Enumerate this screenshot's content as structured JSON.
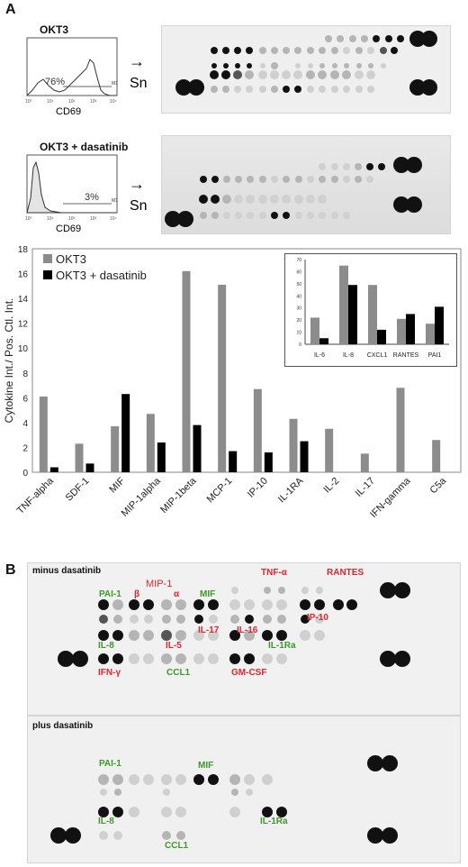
{
  "panel_a": {
    "label": "A",
    "conditions": [
      {
        "title": "OKT3",
        "percent": "76%",
        "gate": "M1",
        "xlabel": "CD69",
        "arrow_label": "Sn"
      },
      {
        "title": "OKT3 + dasatinib",
        "percent": "3%",
        "gate": "M1",
        "xlabel": "CD69",
        "arrow_label": "Sn"
      }
    ],
    "flow_ticks": [
      "10⁰",
      "10¹",
      "10²",
      "10³",
      "10⁴"
    ]
  },
  "chart_data": [
    {
      "type": "bar",
      "ylabel": "Cytokine Int./ Pos. Ctl. Int.",
      "ylim": [
        0,
        18
      ],
      "yticks": [
        0,
        2,
        4,
        6,
        8,
        10,
        12,
        14,
        16,
        18
      ],
      "categories": [
        "TNF-alpha",
        "SDF-1",
        "MIF",
        "MIP-1alpha",
        "MIP-1beta",
        "MCP-1",
        "IP-10",
        "IL-1RA",
        "IL-2",
        "IL-17",
        "IFN-gamma",
        "C5a"
      ],
      "series": [
        {
          "name": "OKT3",
          "color": "#8c8c8c",
          "values": [
            6.1,
            2.3,
            3.7,
            4.7,
            16.2,
            15.1,
            6.7,
            4.3,
            3.5,
            1.5,
            6.8,
            2.6
          ]
        },
        {
          "name": "OKT3 + dasatinib",
          "color": "#000000",
          "values": [
            0.4,
            0.7,
            6.3,
            2.4,
            3.8,
            1.7,
            1.6,
            2.5,
            0,
            0,
            0,
            0
          ]
        }
      ],
      "legend": "top-left"
    },
    {
      "type": "bar",
      "ylim": [
        0,
        70
      ],
      "yticks": [
        0,
        10,
        20,
        30,
        40,
        50,
        60,
        70
      ],
      "categories": [
        "IL-6",
        "IL-8",
        "CXCL1",
        "RANTES",
        "PAI1"
      ],
      "series": [
        {
          "name": "OKT3",
          "color": "#8c8c8c",
          "values": [
            22,
            65,
            49,
            21,
            17
          ]
        },
        {
          "name": "OKT3 + dasatinib",
          "color": "#000000",
          "values": [
            5,
            49,
            12,
            25,
            31
          ]
        }
      ],
      "legend": "none"
    }
  ],
  "panel_b": {
    "label": "B",
    "minus": {
      "title": "minus dasatinib",
      "labels": [
        {
          "text": "PAI-1",
          "color": "green"
        },
        {
          "text": "β",
          "color": "red"
        },
        {
          "text": "MIP-1",
          "color": "red"
        },
        {
          "text": "α",
          "color": "red"
        },
        {
          "text": "MIF",
          "color": "green"
        },
        {
          "text": "TNF-α",
          "color": "red"
        },
        {
          "text": "RANTES",
          "color": "red"
        },
        {
          "text": "IL-17",
          "color": "red"
        },
        {
          "text": "IP-10",
          "color": "red"
        },
        {
          "text": "IL-16",
          "color": "red"
        },
        {
          "text": "IL-8",
          "color": "green"
        },
        {
          "text": "IL-5",
          "color": "red"
        },
        {
          "text": "IL-1Ra",
          "color": "green"
        },
        {
          "text": "IFN-γ",
          "color": "red"
        },
        {
          "text": "CCL1",
          "color": "green"
        },
        {
          "text": "GM-CSF",
          "color": "red"
        }
      ]
    },
    "plus": {
      "title": "plus dasatinib",
      "labels": [
        {
          "text": "PAI-1",
          "color": "green"
        },
        {
          "text": "MIF",
          "color": "green"
        },
        {
          "text": "IL-8",
          "color": "green"
        },
        {
          "text": "IL-1Ra",
          "color": "green"
        },
        {
          "text": "CCL1",
          "color": "green"
        }
      ]
    }
  }
}
